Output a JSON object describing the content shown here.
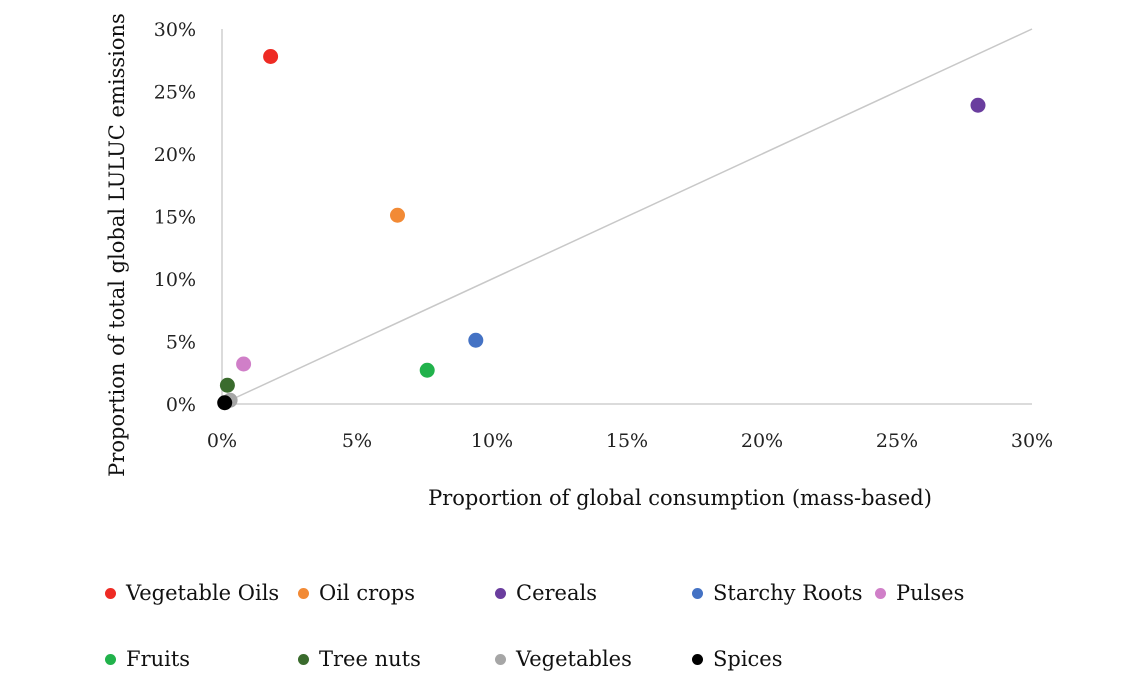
{
  "chart_data": {
    "type": "scatter",
    "xlabel": "Proportion of global consumption (mass-based)",
    "ylabel": "Proportion of total global LULUC emissions",
    "xlim": [
      0,
      30
    ],
    "ylim": [
      0,
      30
    ],
    "x_ticks": [
      "0%",
      "5%",
      "10%",
      "15%",
      "20%",
      "25%",
      "30%"
    ],
    "y_ticks": [
      "0%",
      "5%",
      "10%",
      "15%",
      "20%",
      "25%",
      "30%"
    ],
    "grid": false,
    "reference_line": {
      "from": [
        0,
        0
      ],
      "to": [
        30,
        30
      ],
      "color": "#c8c8c8"
    },
    "legend_position": "bottom",
    "series": [
      {
        "name": "Vegetable Oils",
        "color": "#ee2b24",
        "x": 1.8,
        "y": 27.8
      },
      {
        "name": "Oil crops",
        "color": "#f28a35",
        "x": 6.5,
        "y": 15.1
      },
      {
        "name": "Cereals",
        "color": "#6a3d9e",
        "x": 28.0,
        "y": 23.9
      },
      {
        "name": "Starchy Roots",
        "color": "#4472c4",
        "x": 9.4,
        "y": 5.1
      },
      {
        "name": "Pulses",
        "color": "#d07fc8",
        "x": 0.8,
        "y": 3.2
      },
      {
        "name": "Fruits",
        "color": "#21b24b",
        "x": 7.6,
        "y": 2.7
      },
      {
        "name": "Tree nuts",
        "color": "#3a6b2d",
        "x": 0.2,
        "y": 1.5
      },
      {
        "name": "Vegetables",
        "color": "#a6a6a6",
        "x": 0.3,
        "y": 0.3
      },
      {
        "name": "Spices",
        "color": "#000000",
        "x": 0.1,
        "y": 0.1
      }
    ]
  }
}
